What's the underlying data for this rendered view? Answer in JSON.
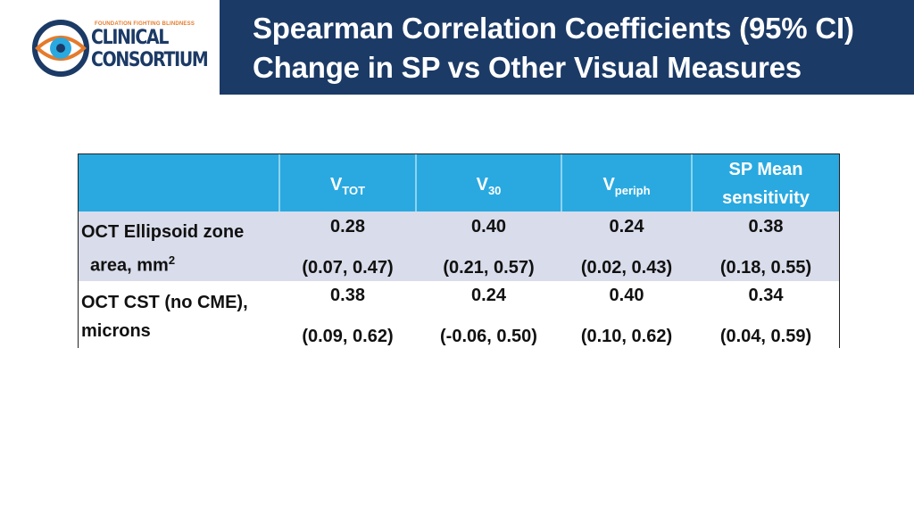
{
  "logo": {
    "tagline": "FOUNDATION FIGHTING BLINDNESS",
    "word1": "CLINICAL",
    "word2": "CONSORTIUM",
    "colors": {
      "navy": "#1b3a66",
      "orange": "#e57b2c",
      "cyan": "#29a9e0"
    }
  },
  "header": {
    "title_line1": "Spearman Correlation Coefficients (95% CI)",
    "title_line2": "Change in SP vs Other Visual Measures",
    "band_color": "#1b3a66"
  },
  "table": {
    "header_color": "#29a9e0",
    "columns": [
      {
        "main": "V",
        "sub": "TOT"
      },
      {
        "main": "V",
        "sub": "30"
      },
      {
        "main": "V",
        "sub": "periph"
      },
      {
        "line1": "SP Mean",
        "line2": "sensitivity"
      }
    ],
    "rows": [
      {
        "label_line1": "OCT Ellipsoid zone",
        "label_line2": "area, mm",
        "label_sup": "2",
        "coefs": [
          "0.28",
          "0.40",
          "0.24",
          "0.38"
        ],
        "cis": [
          "(0.07, 0.47)",
          "(0.21, 0.57)",
          "(0.02, 0.43)",
          "(0.18, 0.55)"
        ]
      },
      {
        "label_line1": "OCT CST (no CME),",
        "label_line2": "microns",
        "coefs": [
          "0.38",
          "0.24",
          "0.40",
          "0.34"
        ],
        "cis": [
          "(0.09, 0.62)",
          "(-0.06, 0.50)",
          "(0.10, 0.62)",
          "(0.04, 0.59)"
        ]
      }
    ]
  }
}
